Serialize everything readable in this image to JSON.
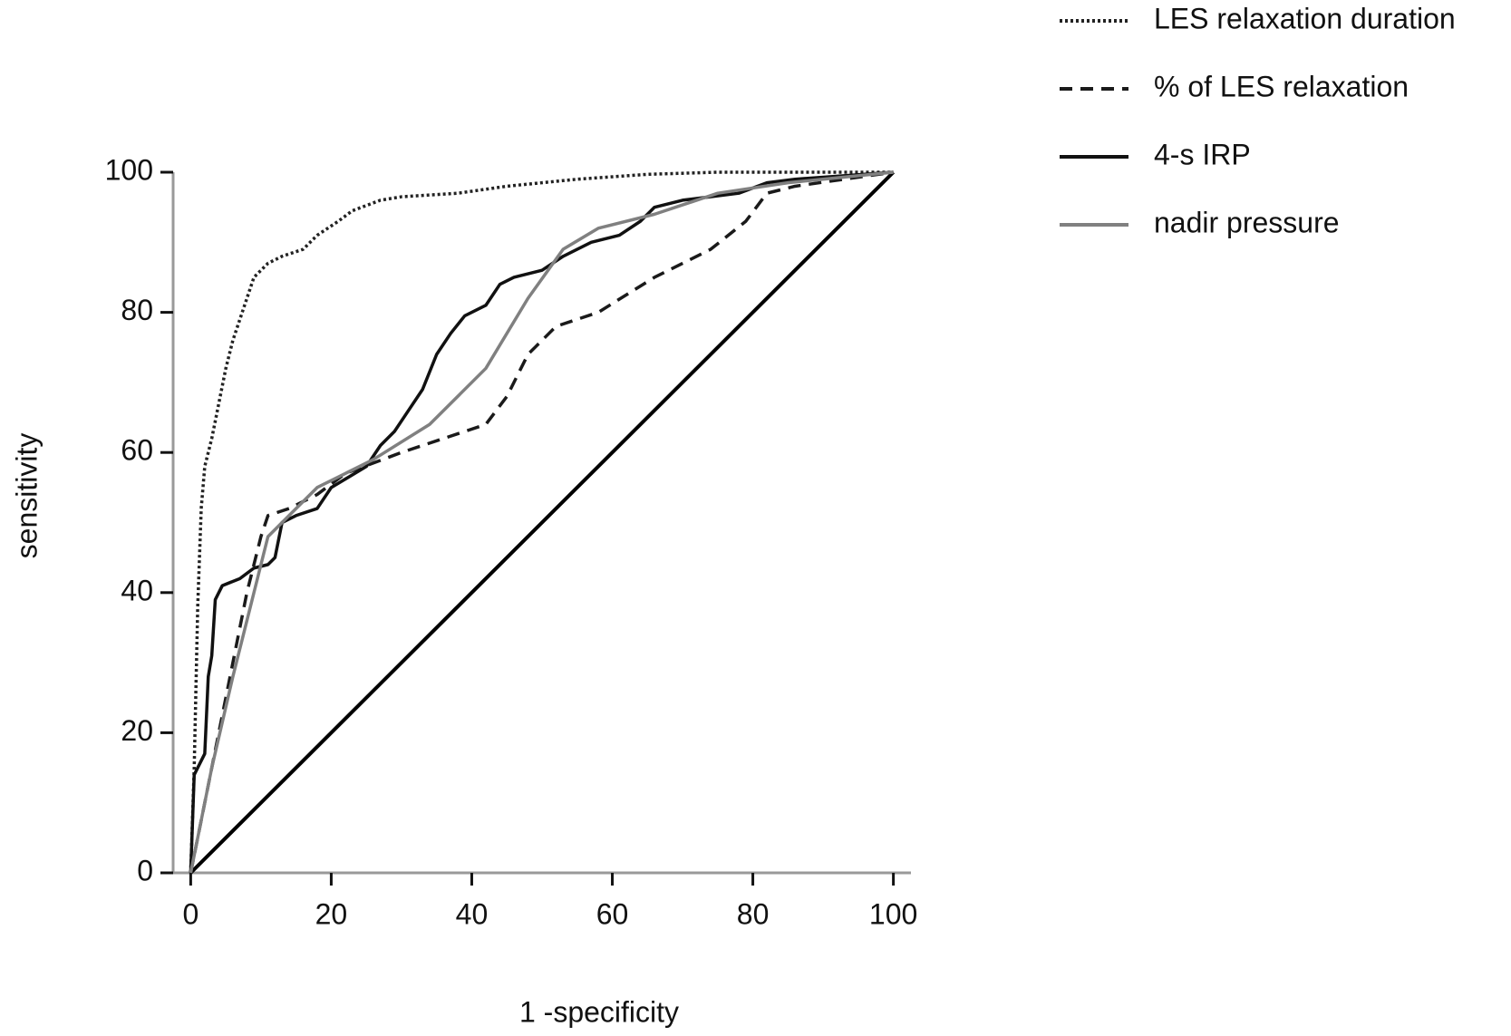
{
  "chart_data": {
    "type": "line",
    "x_label": "1 -specificity",
    "y_label": "sensitivity",
    "xlim": [
      -2.5,
      102.5
    ],
    "ylim": [
      0,
      100
    ],
    "xticks": [
      0,
      20,
      40,
      60,
      80,
      100
    ],
    "yticks": [
      0,
      20,
      40,
      60,
      80,
      100
    ],
    "grid": false,
    "legend": "top-right",
    "series": [
      {
        "name": "LES relaxation duration",
        "color": "#222222",
        "style": "dotted",
        "x": [
          0,
          0.5,
          1,
          1.5,
          2,
          3,
          4,
          5,
          6,
          7,
          8,
          9,
          11,
          13,
          16,
          18,
          21,
          23,
          27,
          30,
          38,
          45,
          55,
          65,
          75,
          100
        ],
        "values": [
          0,
          15,
          38,
          52,
          58,
          62,
          67,
          72,
          76,
          79,
          82,
          85,
          87,
          88,
          89,
          91,
          93,
          94.5,
          96,
          96.5,
          97,
          98,
          99,
          99.7,
          100,
          100
        ]
      },
      {
        "name": "% of LES relaxation",
        "color": "#1a1a1a",
        "style": "dashed",
        "x": [
          0,
          2,
          4,
          6,
          8,
          10,
          11,
          14,
          18,
          22,
          30,
          36,
          42,
          45,
          48,
          52,
          58,
          66,
          74,
          79,
          82,
          86,
          100
        ],
        "values": [
          0,
          10,
          20,
          30,
          40,
          48,
          51,
          52,
          54,
          57,
          60,
          62,
          64,
          68,
          74,
          78,
          80,
          85,
          89,
          93,
          97,
          98,
          100
        ]
      },
      {
        "name": "4-s IRP",
        "color": "#111111",
        "style": "solid",
        "x": [
          0,
          0.5,
          2,
          2.5,
          3,
          3.5,
          4.5,
          7,
          9,
          11,
          12,
          13,
          15,
          18,
          20,
          25,
          27,
          29,
          31,
          33,
          35,
          37,
          39,
          42,
          44,
          46,
          50,
          53,
          57,
          61,
          64,
          66,
          70,
          78,
          82,
          86,
          100
        ],
        "values": [
          0,
          14,
          17,
          28,
          31,
          39,
          41,
          42,
          43.5,
          44,
          45,
          50,
          51,
          52,
          55,
          58,
          61,
          63,
          66,
          69,
          74,
          77,
          79.5,
          81,
          84,
          85,
          86,
          88,
          90,
          91,
          93,
          95,
          96,
          97,
          98.5,
          99,
          100
        ]
      },
      {
        "name": "nadir pressure",
        "color": "#808080",
        "style": "solid",
        "x": [
          0,
          3,
          6,
          9,
          11,
          14,
          18,
          22,
          26,
          34,
          42,
          48,
          53,
          58,
          66,
          75,
          85,
          100
        ],
        "values": [
          0,
          15,
          28,
          40,
          48,
          51,
          55,
          57,
          59,
          64,
          72,
          82,
          89,
          92,
          94,
          97,
          98.5,
          100
        ]
      }
    ],
    "reference_line": {
      "color": "#000000",
      "x": [
        0,
        100
      ],
      "values": [
        0,
        100
      ]
    }
  }
}
